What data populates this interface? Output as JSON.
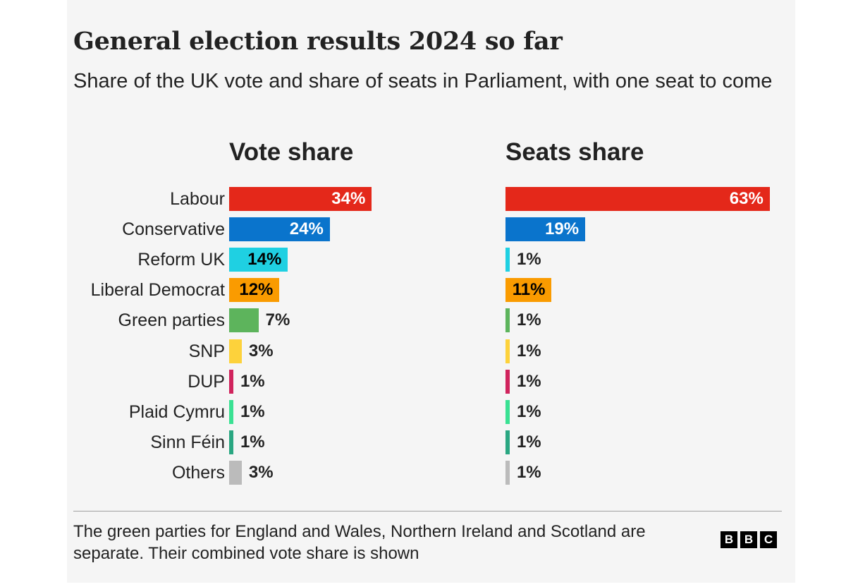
{
  "chart_data": {
    "type": "bar",
    "title": "General election results 2024 so far",
    "subtitle": "Share of the UK vote and share of seats in Parliament, with one seat to come",
    "categories": [
      "Labour",
      "Conservative",
      "Reform UK",
      "Liberal Democrat",
      "Green parties",
      "SNP",
      "DUP",
      "Plaid Cymru",
      "Sinn Féin",
      "Others"
    ],
    "colors": [
      "#e4281a",
      "#0a74cc",
      "#1fd0e2",
      "#fa9b00",
      "#5db45c",
      "#fdd23b",
      "#d0245d",
      "#3ae193",
      "#2aa782",
      "#bbbbbb"
    ],
    "value_text_colors": [
      "#ffffff",
      "#ffffff",
      "#000000",
      "#000000",
      "#222222",
      "#222222",
      "#222222",
      "#222222",
      "#222222",
      "#222222"
    ],
    "series": [
      {
        "name": "Vote share",
        "values": [
          34,
          24,
          14,
          12,
          7,
          3,
          1,
          1,
          1,
          3
        ]
      },
      {
        "name": "Seats share",
        "values": [
          63,
          19,
          1,
          11,
          1,
          1,
          1,
          1,
          1,
          1
        ]
      }
    ],
    "value_suffix": "%",
    "footnote": "The green parties for England and Wales, Northern Ireland and Scotland are separate. Their combined vote share is shown",
    "logo_letters": [
      "B",
      "B",
      "C"
    ],
    "grid": false,
    "legend": "none"
  }
}
